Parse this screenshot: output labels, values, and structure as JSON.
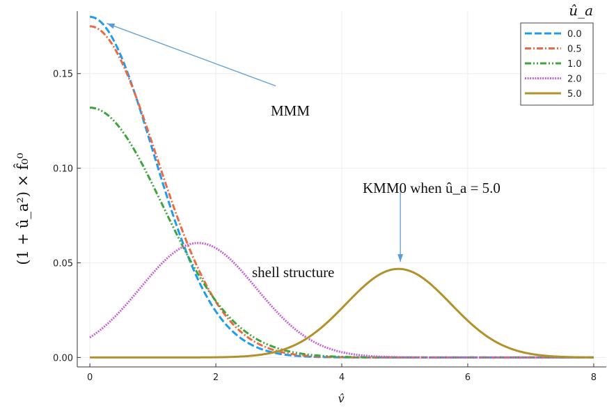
{
  "chart_data": {
    "type": "line",
    "xlabel": "v̂",
    "ylabel": "(1 + û_a²) × f̂₀⁰",
    "xlim": [
      -0.2,
      8.2
    ],
    "ylim": [
      -0.005,
      0.183
    ],
    "x_ticks": [
      0,
      2,
      4,
      6,
      8
    ],
    "x_tick_labels": [
      "0",
      "2",
      "4",
      "6",
      "8"
    ],
    "y_ticks": [
      0,
      0.05,
      0.1,
      0.15
    ],
    "y_tick_labels": [
      "0.00",
      "0.05",
      "0.10",
      "0.15"
    ],
    "grid": true,
    "legend_title": "û_a",
    "legend_position": "top-right",
    "series": [
      {
        "name": "0.0",
        "color": "#1f9bef",
        "dash": "dashed",
        "peak": 0.18,
        "mu": 0.0,
        "sigma": 1.0
      },
      {
        "name": "0.5",
        "color": "#e96a45",
        "dash": "dashdot",
        "peak": 0.175,
        "mu": 0.0,
        "sigma": 1.06
      },
      {
        "name": "1.0",
        "color": "#3ea43b",
        "dash": "dashdotdot",
        "peak": 0.132,
        "mu": 0.0,
        "sigma": 1.16
      },
      {
        "name": "2.0",
        "color": "#c561d8",
        "dash": "dotted",
        "peak": 0.0605,
        "mu": 1.72,
        "sigma": 0.92
      },
      {
        "name": "5.0",
        "color": "#b1912a",
        "dash": "solid",
        "peak": 0.0468,
        "mu": 4.9,
        "sigma": 0.83
      }
    ],
    "annotations": [
      {
        "text": "MMM",
        "arrow_from": [
          2.95,
          0.1435
        ],
        "arrow_to": [
          0.27,
          0.1765
        ]
      },
      {
        "text": "KMM0 when û_a = 5.0",
        "arrow_from": [
          4.93,
          0.088
        ],
        "arrow_to": [
          4.93,
          0.0505
        ]
      },
      {
        "text": "shell structure"
      }
    ]
  }
}
